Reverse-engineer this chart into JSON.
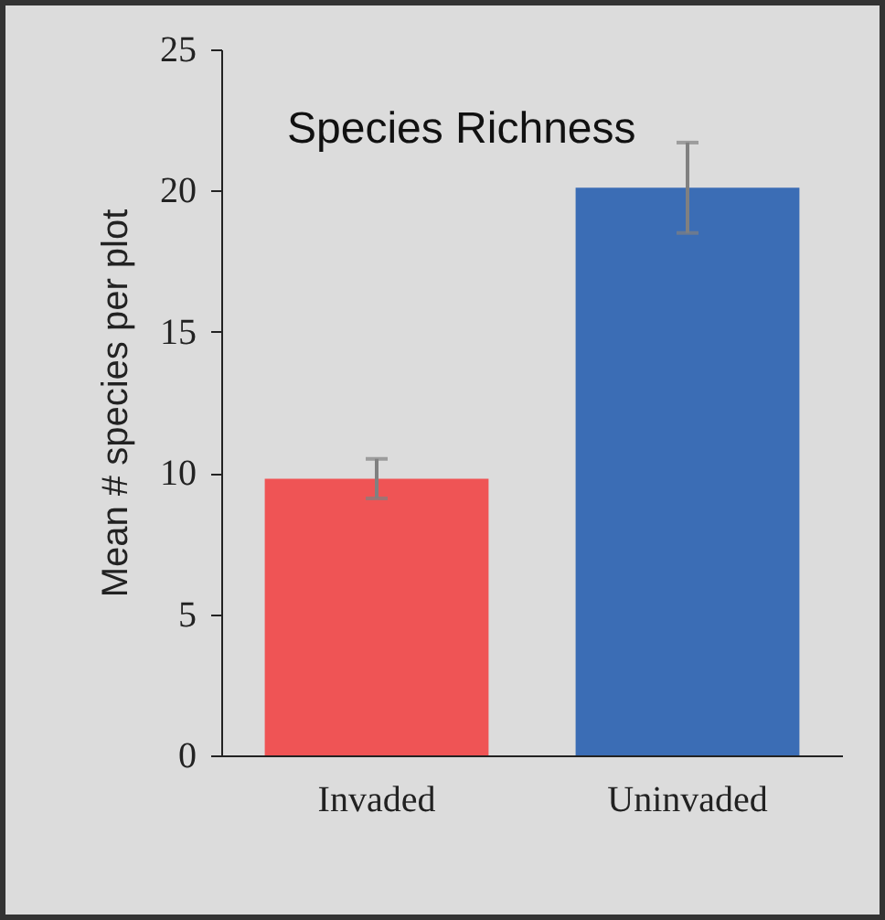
{
  "chart_data": {
    "type": "bar",
    "title": "Species Richness",
    "ylabel": "Mean # species per plot",
    "categories": [
      "Invaded",
      "Uninvaded"
    ],
    "values": [
      9.8,
      20.1
    ],
    "colors": [
      "#ef5455",
      "#3b6db5"
    ],
    "errors": [
      0.7,
      1.6
    ],
    "ylim": [
      0,
      25
    ],
    "yticks": [
      0,
      5,
      10,
      15,
      20,
      25
    ]
  }
}
